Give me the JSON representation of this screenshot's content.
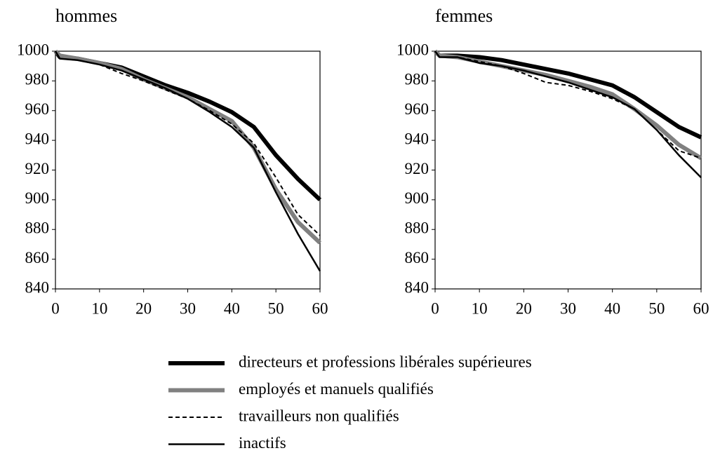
{
  "chart_data": [
    {
      "type": "line",
      "title": "hommes",
      "x": [
        0,
        1,
        5,
        10,
        15,
        20,
        25,
        30,
        35,
        40,
        45,
        50,
        55,
        60
      ],
      "xlim": [
        0,
        60
      ],
      "xticks": [
        0,
        10,
        20,
        30,
        40,
        50,
        60
      ],
      "ylim": [
        840,
        1000
      ],
      "yticks": [
        840,
        860,
        880,
        900,
        920,
        940,
        960,
        980,
        1000
      ],
      "series": [
        {
          "name": "directeurs et professions libérales supérieures",
          "color": "#000000",
          "width": 6,
          "dash": false,
          "values": [
            1000,
            996,
            995,
            992,
            989,
            983,
            977,
            972,
            966,
            959,
            949,
            930,
            914,
            900
          ]
        },
        {
          "name": "employés et manuels qualifiés",
          "color": "#808080",
          "width": 6,
          "dash": false,
          "values": [
            1000,
            997,
            995,
            992,
            988,
            981,
            975,
            969,
            961,
            953,
            935,
            907,
            885,
            871
          ]
        },
        {
          "name": "travailleurs non qualifiés",
          "color": "#000000",
          "width": 2,
          "dash": true,
          "values": [
            1000,
            995,
            994,
            991,
            985,
            980,
            974,
            968,
            960,
            951,
            938,
            915,
            890,
            876
          ]
        },
        {
          "name": "inactifs",
          "color": "#000000",
          "width": 2.5,
          "dash": false,
          "values": [
            1000,
            995,
            994,
            991,
            987,
            981,
            975,
            968,
            959,
            949,
            935,
            905,
            877,
            852
          ]
        }
      ]
    },
    {
      "type": "line",
      "title": "femmes",
      "x": [
        0,
        1,
        5,
        10,
        15,
        20,
        25,
        30,
        35,
        40,
        45,
        50,
        55,
        60
      ],
      "xlim": [
        0,
        60
      ],
      "xticks": [
        0,
        10,
        20,
        30,
        40,
        50,
        60
      ],
      "ylim": [
        840,
        1000
      ],
      "yticks": [
        840,
        860,
        880,
        900,
        920,
        940,
        960,
        980,
        1000
      ],
      "series": [
        {
          "color": "#000000",
          "width": 6,
          "dash": false,
          "values": [
            1000,
            997,
            997,
            996,
            994,
            991,
            988,
            985,
            981,
            977,
            969,
            959,
            949,
            942
          ]
        },
        {
          "color": "#808080",
          "width": 6,
          "dash": false,
          "values": [
            1000,
            997,
            996,
            993,
            990,
            987,
            984,
            980,
            976,
            971,
            961,
            950,
            937,
            928
          ]
        },
        {
          "color": "#000000",
          "width": 2,
          "dash": true,
          "values": [
            1000,
            996,
            996,
            993,
            990,
            985,
            979,
            977,
            973,
            968,
            961,
            947,
            933,
            928
          ]
        },
        {
          "color": "#000000",
          "width": 2.5,
          "dash": false,
          "values": [
            1000,
            996,
            996,
            992,
            990,
            987,
            983,
            979,
            974,
            969,
            961,
            947,
            930,
            915
          ]
        }
      ]
    }
  ]
}
